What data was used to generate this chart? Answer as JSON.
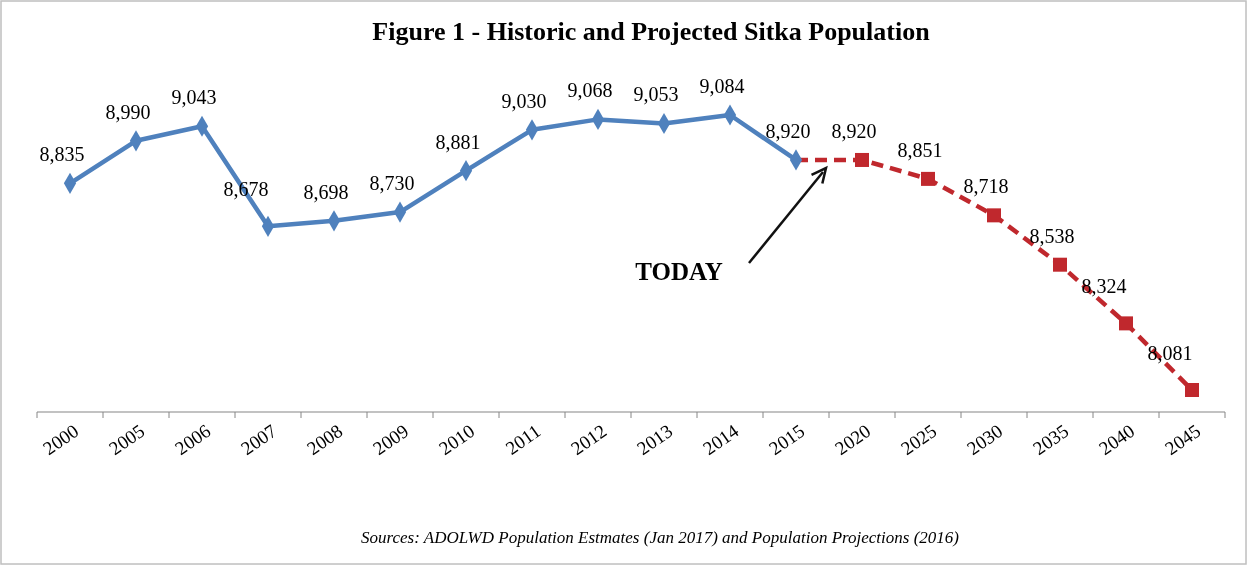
{
  "chart_data": {
    "type": "line",
    "title": "Figure 1 - Historic and Projected Sitka Population",
    "categories": [
      "2000",
      "2005",
      "2006",
      "2007",
      "2008",
      "2009",
      "2010",
      "2011",
      "2012",
      "2013",
      "2014",
      "2015",
      "2020",
      "2025",
      "2030",
      "2035",
      "2040",
      "2045"
    ],
    "series": [
      {
        "color": "#4f81bd",
        "marker": "diamond",
        "line_style": "solid",
        "values": [
          8835,
          8990,
          9043,
          8678,
          8698,
          8730,
          8881,
          9030,
          9068,
          9053,
          9084,
          8920,
          null,
          null,
          null,
          null,
          null,
          null
        ],
        "value_labels": [
          "8,835",
          "8,990",
          "9,043",
          "8,678",
          "8,698",
          "8,730",
          "8,881",
          "9,030",
          "9,068",
          "9,053",
          "9,084",
          "8,920",
          null,
          null,
          null,
          null,
          null,
          null
        ]
      },
      {
        "color": "#c0282d",
        "marker": "square",
        "line_style": "dashed",
        "values": [
          null,
          null,
          null,
          null,
          null,
          null,
          null,
          null,
          null,
          null,
          null,
          8920,
          8920,
          8851,
          8718,
          8538,
          8324,
          8081
        ],
        "value_labels": [
          null,
          null,
          null,
          null,
          null,
          null,
          null,
          null,
          null,
          null,
          null,
          null,
          "8,920",
          "8,851",
          "8,718",
          "8,538",
          "8,324",
          "8,081"
        ]
      }
    ],
    "annotations": [
      "TODAY",
      "Sources: ADOLWD Population Estmates (Jan 2017) and Population Projections (2016)"
    ]
  }
}
